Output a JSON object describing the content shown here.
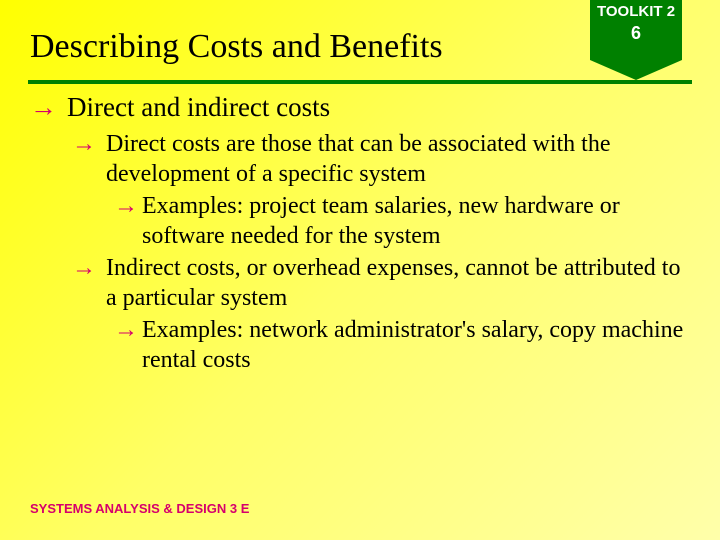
{
  "badge": {
    "line1": "TOOLKIT 2",
    "line2": "6"
  },
  "title": "Describing Costs and Benefits",
  "colors": {
    "accent_green": "#008000",
    "accent_magenta": "#d6006c",
    "bg_gradient_start": "#ffff00",
    "bg_gradient_end": "#ffffaa",
    "text_black": "#000000",
    "badge_text": "#ffffff"
  },
  "typography": {
    "title_fontsize": 34,
    "l1_fontsize": 27,
    "l2_fontsize": 24,
    "l3_fontsize": 24,
    "footer_fontsize": 13,
    "title_family": "Times New Roman",
    "body_family": "Times New Roman",
    "footer_family": "Arial",
    "badge_family": "Arial"
  },
  "bullets": {
    "arrow_glyph": "→",
    "l1": {
      "text": "Direct and indirect costs"
    },
    "l2a": {
      "text": "Direct costs are those that can be associated with the development of a specific system"
    },
    "l3a": {
      "text": "Examples: project team salaries, new hardware or software needed for the system"
    },
    "l2b": {
      "text": "Indirect costs, or overhead expenses, cannot be attributed to a particular system"
    },
    "l3b": {
      "text": "Examples: network administrator's salary, copy machine rental costs"
    }
  },
  "footer": "SYSTEMS ANALYSIS & DESIGN 3 E"
}
